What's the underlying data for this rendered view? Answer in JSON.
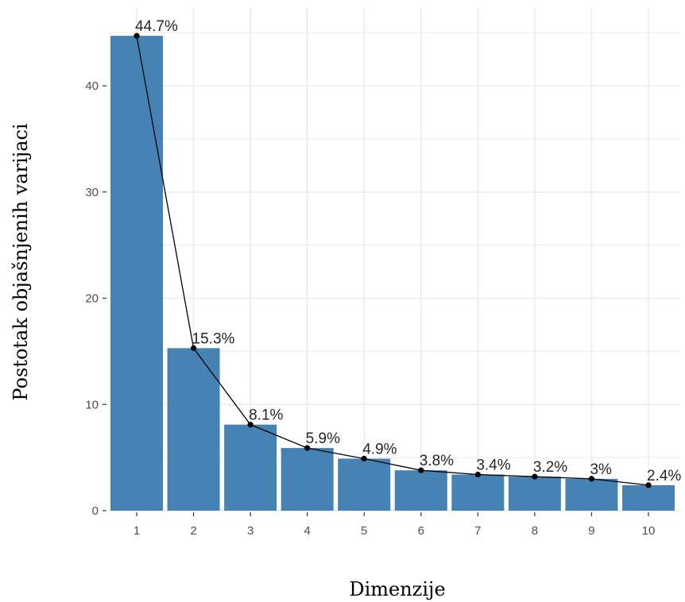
{
  "chart_data": {
    "type": "bar",
    "categories": [
      "1",
      "2",
      "3",
      "4",
      "5",
      "6",
      "7",
      "8",
      "9",
      "10"
    ],
    "values": [
      44.7,
      15.3,
      8.1,
      5.9,
      4.9,
      3.8,
      3.4,
      3.2,
      3.0,
      2.4
    ],
    "data_labels": [
      "44.7%",
      "15.3%",
      "8.1%",
      "5.9%",
      "4.9%",
      "3.8%",
      "3.4%",
      "3.2%",
      "3%",
      "2.4%"
    ],
    "xlabel": "Dimenzije",
    "ylabel": "Postotak objašnjenih varijaci",
    "yticks": [
      0,
      10,
      20,
      30,
      40
    ],
    "ylim": [
      0,
      47
    ],
    "grid": true,
    "line_overlay": true,
    "bar_color": "#4682b4",
    "line_color": "#000000",
    "grid_color": "#ebebeb"
  }
}
